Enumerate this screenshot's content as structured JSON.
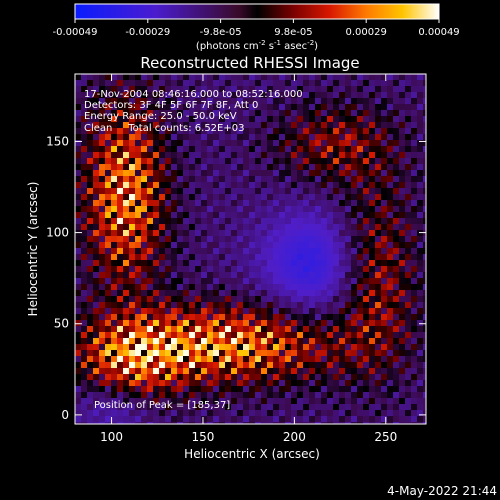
{
  "colorbar": {
    "tick_labels": [
      "-0.00049",
      "-0.00029",
      "-9.8e-05",
      "9.8e-05",
      "0.00029",
      "0.00049"
    ],
    "unit_main": "(photons cm",
    "unit_exp1": "-2",
    "unit_mid": " s",
    "unit_exp2": "-1",
    "unit_mid2": " asec",
    "unit_exp3": "-2",
    "unit_end": ")"
  },
  "chart_data": {
    "type": "heatmap",
    "title": "Reconstructed RHESSI Image",
    "xlabel": "Heliocentric X (arcsec)",
    "ylabel": "Heliocentric Y (arcsec)",
    "xlim": [
      80,
      272
    ],
    "ylim": [
      -5,
      187
    ],
    "x_ticks": [
      100,
      150,
      200,
      250
    ],
    "y_ticks": [
      0,
      50,
      100,
      150
    ],
    "color_range": [
      -0.00049,
      0.00049
    ],
    "colormap": "blue-purple-red-orange-yellow-white",
    "annotations": [
      "17-Nov-2004 08:46:16.000 to 08:52:16.000",
      "Detectors: 3F 4F 5F 6F 7F 8F, Att 0",
      "Energy Range: 25.0 - 50.0 keV",
      "Clean     Total counts: 6.52E+03"
    ],
    "peak_label": "Position of Peak = [185,37]",
    "peak": [
      185,
      37
    ]
  },
  "footer": {
    "date": "4-May-2022 21:44"
  }
}
